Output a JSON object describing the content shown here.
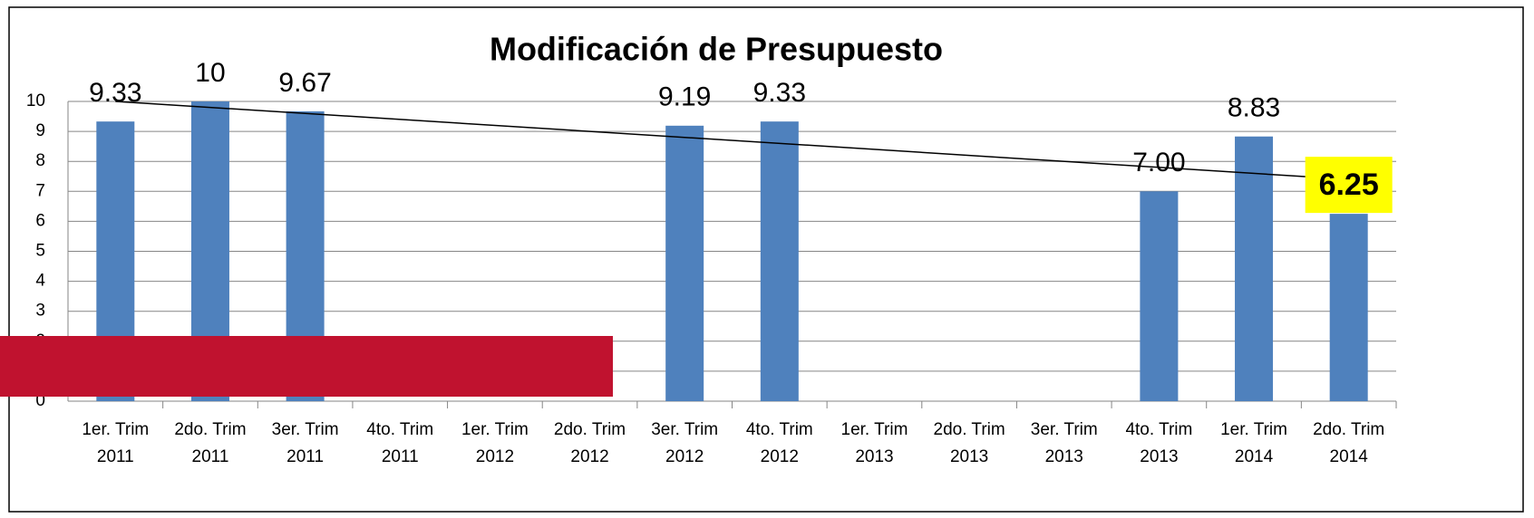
{
  "chart_data": {
    "type": "bar",
    "title": "Modificación de Presupuesto",
    "categories": [
      [
        "1er. Trim",
        "2011"
      ],
      [
        "2do. Trim",
        "2011"
      ],
      [
        "3er. Trim",
        "2011"
      ],
      [
        "4to. Trim",
        "2011"
      ],
      [
        "1er. Trim",
        "2012"
      ],
      [
        "2do. Trim",
        "2012"
      ],
      [
        "3er. Trim",
        "2012"
      ],
      [
        "4to. Trim",
        "2012"
      ],
      [
        "1er. Trim",
        "2013"
      ],
      [
        "2do. Trim",
        "2013"
      ],
      [
        "3er. Trim",
        "2013"
      ],
      [
        "4to. Trim",
        "2013"
      ],
      [
        "1er. Trim",
        "2014"
      ],
      [
        "2do. Trim",
        "2014"
      ]
    ],
    "values": [
      9.33,
      10,
      9.67,
      null,
      null,
      null,
      9.19,
      9.33,
      null,
      null,
      null,
      7.0,
      8.83,
      6.25
    ],
    "value_labels": [
      "9.33",
      "10",
      "9.67",
      null,
      null,
      null,
      "9.19",
      "9.33",
      null,
      null,
      null,
      "7.00",
      "8.83",
      "6.25"
    ],
    "color": "#4f81bd",
    "trendline": [
      10,
      7.4
    ],
    "trendline_color": "#000000",
    "highlight_index": 13,
    "highlight_color": "#ffff00",
    "ylim": [
      0,
      10
    ],
    "yticks": [
      0,
      1,
      2,
      3,
      4,
      5,
      6,
      7,
      8,
      9,
      10
    ],
    "grid": true
  }
}
